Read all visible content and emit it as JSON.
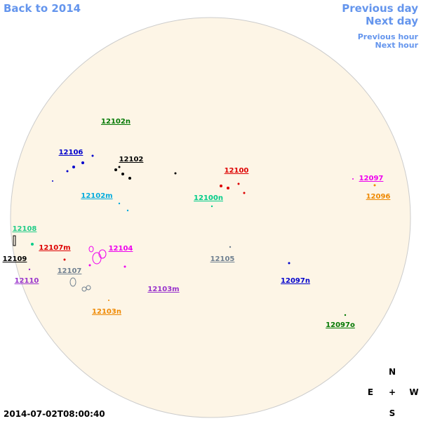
{
  "navigation": {
    "back": "Back to 2014",
    "previous_day": "Previous day",
    "next_day": "Next day",
    "previous_hour": "Previous hour",
    "next_hour": "Next hour"
  },
  "regions": [
    {
      "label": "12102n",
      "color": "#007700"
    },
    {
      "label": "12106",
      "color": "#0000cc"
    },
    {
      "label": "12102",
      "color": "#000000"
    },
    {
      "label": "12100",
      "color": "#dd0000"
    },
    {
      "label": "12097",
      "color": "#ee00ee"
    },
    {
      "label": "12102m",
      "color": "#00aadd"
    },
    {
      "label": "12100n",
      "color": "#00cc88"
    },
    {
      "label": "12096",
      "color": "#ee8800"
    },
    {
      "label": "12108",
      "color": "#22cc88"
    },
    {
      "label": "12107m",
      "color": "#dd0000"
    },
    {
      "label": "12104",
      "color": "#ee00ee"
    },
    {
      "label": "12109",
      "color": "#000000"
    },
    {
      "label": "12105",
      "color": "#708090"
    },
    {
      "label": "12107",
      "color": "#708090"
    },
    {
      "label": "12110",
      "color": "#9933cc"
    },
    {
      "label": "12097n",
      "color": "#0000cc"
    },
    {
      "label": "12103m",
      "color": "#9933cc"
    },
    {
      "label": "12103n",
      "color": "#ee8800"
    },
    {
      "label": "12097o",
      "color": "#007700"
    }
  ],
  "compass": {
    "north": "N",
    "east": "E",
    "center": "+",
    "west": "W",
    "south": "S"
  },
  "timestamp": "2014-07-02T08:00:40"
}
